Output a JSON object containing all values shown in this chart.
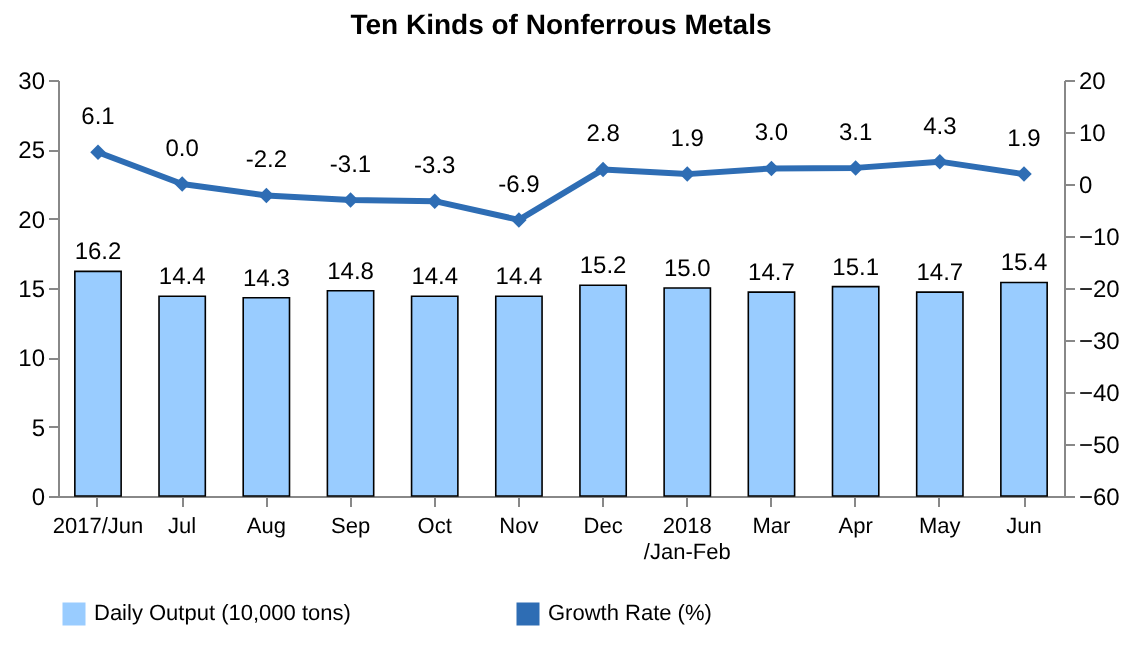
{
  "chart_data": {
    "type": "bar",
    "title": "Ten Kinds of Nonferrous Metals",
    "categories": [
      "2017/Jun",
      "Jul",
      "Aug",
      "Sep",
      "Oct",
      "Nov",
      "Dec",
      "2018\n/Jan-Feb",
      "Mar",
      "Apr",
      "May",
      "Jun"
    ],
    "series": [
      {
        "name": "Daily Output (10,000 tons)",
        "color": "#99ccff",
        "values": [
          16.2,
          14.4,
          14.3,
          14.8,
          14.4,
          14.4,
          15.2,
          15.0,
          14.7,
          15.1,
          14.7,
          15.4
        ],
        "value_labels": [
          "16.2",
          "14.4",
          "14.3",
          "14.8",
          "14.4",
          "14.4",
          "15.2",
          "15.0",
          "14.7",
          "15.1",
          "14.7",
          "15.4"
        ]
      },
      {
        "name": "Growth Rate (%)",
        "color": "#2e6db4",
        "type": "line",
        "axis": "y2",
        "values": [
          6.1,
          0.0,
          -2.2,
          -3.1,
          -3.3,
          -6.9,
          2.8,
          1.9,
          3.0,
          3.1,
          4.3,
          1.9
        ],
        "value_labels": [
          "6.1",
          "0.0",
          "-2.2",
          "-3.1",
          "-3.3",
          "-6.9",
          "2.8",
          "1.9",
          "3.0",
          "3.1",
          "4.3",
          "1.9"
        ]
      }
    ],
    "ylim": [
      0,
      30
    ],
    "yticks": [
      0,
      5,
      10,
      15,
      20,
      25,
      30
    ],
    "y2lim": [
      -60,
      20
    ],
    "y2ticks": [
      -60,
      -50,
      -40,
      -30,
      -20,
      -10,
      0,
      10,
      20
    ],
    "legend": "bottom",
    "marker": "diamond",
    "grid": false
  }
}
